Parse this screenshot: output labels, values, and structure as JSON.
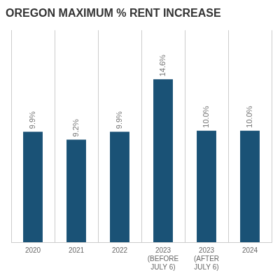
{
  "chart_data": {
    "type": "bar",
    "title": "OREGON MAXIMUM % RENT INCREASE",
    "categories": [
      "2020",
      "2021",
      "2022",
      "2023\n(BEFORE\nJULY 6)",
      "2023\n(AFTER\nJULY 6)",
      "2024"
    ],
    "values": [
      9.9,
      9.2,
      9.9,
      14.6,
      10.0,
      10.0
    ],
    "value_labels": [
      "9.9%",
      "9.2%",
      "9.9%",
      "14.6%",
      "10.0%",
      "10.0%"
    ],
    "color": "#1a5276",
    "ylim": [
      0,
      19
    ],
    "grid": true,
    "data_labels": true,
    "tick_labels": "x"
  }
}
